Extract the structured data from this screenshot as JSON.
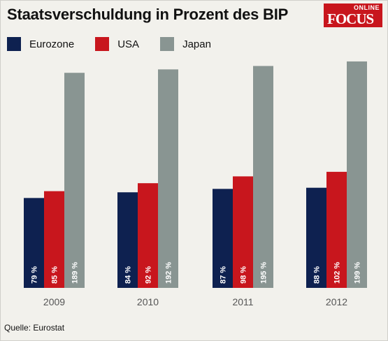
{
  "title": "Staatsverschuldung in Prozent des BIP",
  "logo": {
    "top": "ONLINE",
    "word": "FOCUS"
  },
  "source": "Quelle: Eurostat",
  "chart_data": {
    "type": "bar",
    "categories": [
      "2009",
      "2010",
      "2011",
      "2012"
    ],
    "series": [
      {
        "name": "Eurozone",
        "color": "#0e2150",
        "values": [
          79,
          84,
          87,
          88
        ],
        "labels": [
          "79 %",
          "84 %",
          "87 %",
          "88 %"
        ]
      },
      {
        "name": "USA",
        "color": "#c8161d",
        "values": [
          85,
          92,
          98,
          102
        ],
        "labels": [
          "85 %",
          "92 %",
          "98 %",
          "102 %"
        ]
      },
      {
        "name": "Japan",
        "color": "#899592",
        "values": [
          189,
          192,
          195,
          199
        ],
        "labels": [
          "189 %",
          "192 %",
          "195 %",
          "199 %"
        ]
      }
    ],
    "ylim": [
      0,
      210
    ],
    "grid": false,
    "legend": "top-left"
  }
}
